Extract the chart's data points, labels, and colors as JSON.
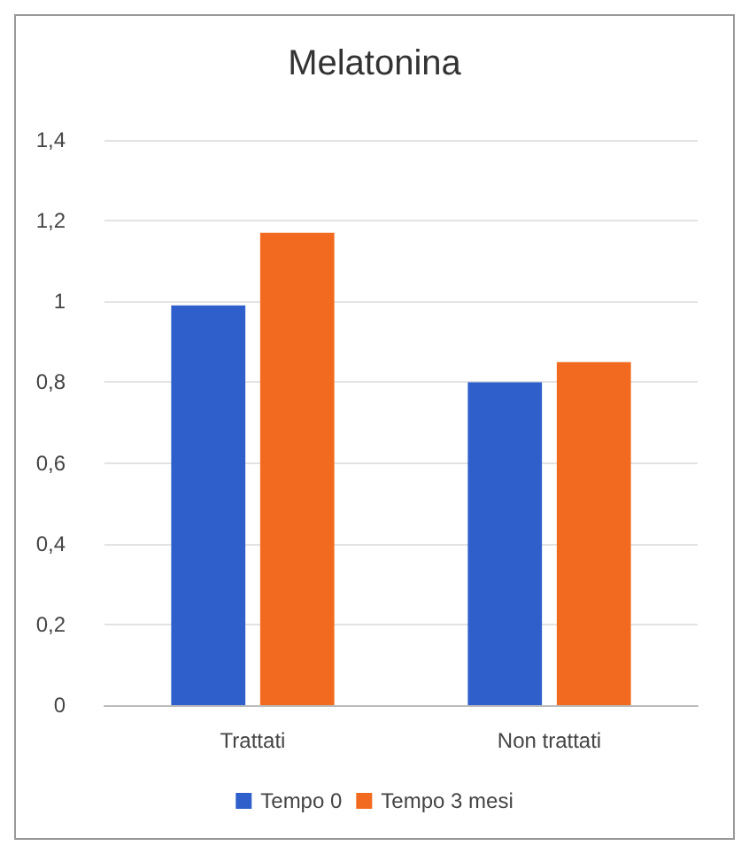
{
  "chart_data": {
    "type": "bar",
    "title": "Melatonina",
    "categories": [
      "Trattati",
      "Non trattati"
    ],
    "series": [
      {
        "name": "Tempo 0",
        "color": "#2f5fcb",
        "values": [
          0.99,
          0.8
        ]
      },
      {
        "name": "Tempo 3 mesi",
        "color": "#f26a1f",
        "values": [
          1.17,
          0.85
        ]
      }
    ],
    "ylim": [
      0,
      1.4
    ],
    "yticks": [
      0,
      {
        "value": 0.2,
        "label": "0,2"
      },
      {
        "value": 0.4,
        "label": "0,4"
      },
      {
        "value": 0.6,
        "label": "0,6"
      },
      {
        "value": 0.8,
        "label": "0,8"
      },
      1,
      {
        "value": 1.2,
        "label": "1,2"
      },
      {
        "value": 1.4,
        "label": "1,4"
      }
    ],
    "grid": "y",
    "legend": "bottom"
  }
}
